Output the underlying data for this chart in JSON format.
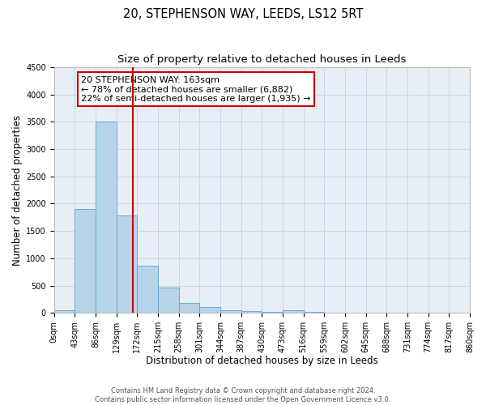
{
  "title_line1": "20, STEPHENSON WAY, LEEDS, LS12 5RT",
  "title_line2": "Size of property relative to detached houses in Leeds",
  "xlabel": "Distribution of detached houses by size in Leeds",
  "ylabel": "Number of detached properties",
  "bin_edges": [
    0,
    43,
    86,
    129,
    172,
    215,
    258,
    301,
    344,
    387,
    430,
    473,
    516,
    559,
    602,
    645,
    688,
    731,
    774,
    817,
    860
  ],
  "bar_heights": [
    50,
    1900,
    3500,
    1780,
    860,
    460,
    175,
    100,
    55,
    30,
    20,
    55,
    20,
    10,
    0,
    0,
    0,
    0,
    0,
    0
  ],
  "bar_color_left": "#b8d4e8",
  "bar_color_right": "#b8d4e8",
  "bar_edge_color": "#6aaad4",
  "vline_x": 163,
  "vline_color": "#cc0000",
  "ylim": [
    0,
    4500
  ],
  "yticks": [
    0,
    500,
    1000,
    1500,
    2000,
    2500,
    3000,
    3500,
    4000,
    4500
  ],
  "grid_color": "#c8d8e8",
  "background_color": "#e8eef5",
  "annotation_line1": "20 STEPHENSON WAY: 163sqm",
  "annotation_line2": "← 78% of detached houses are smaller (6,882)",
  "annotation_line3": "22% of semi-detached houses are larger (1,935) →",
  "footer_line1": "Contains HM Land Registry data © Crown copyright and database right 2024.",
  "footer_line2": "Contains public sector information licensed under the Open Government Licence v3.0.",
  "title_fontsize": 10.5,
  "subtitle_fontsize": 9.5,
  "axis_label_fontsize": 8.5,
  "tick_fontsize": 7,
  "annot_fontsize": 8,
  "footer_fontsize": 6
}
